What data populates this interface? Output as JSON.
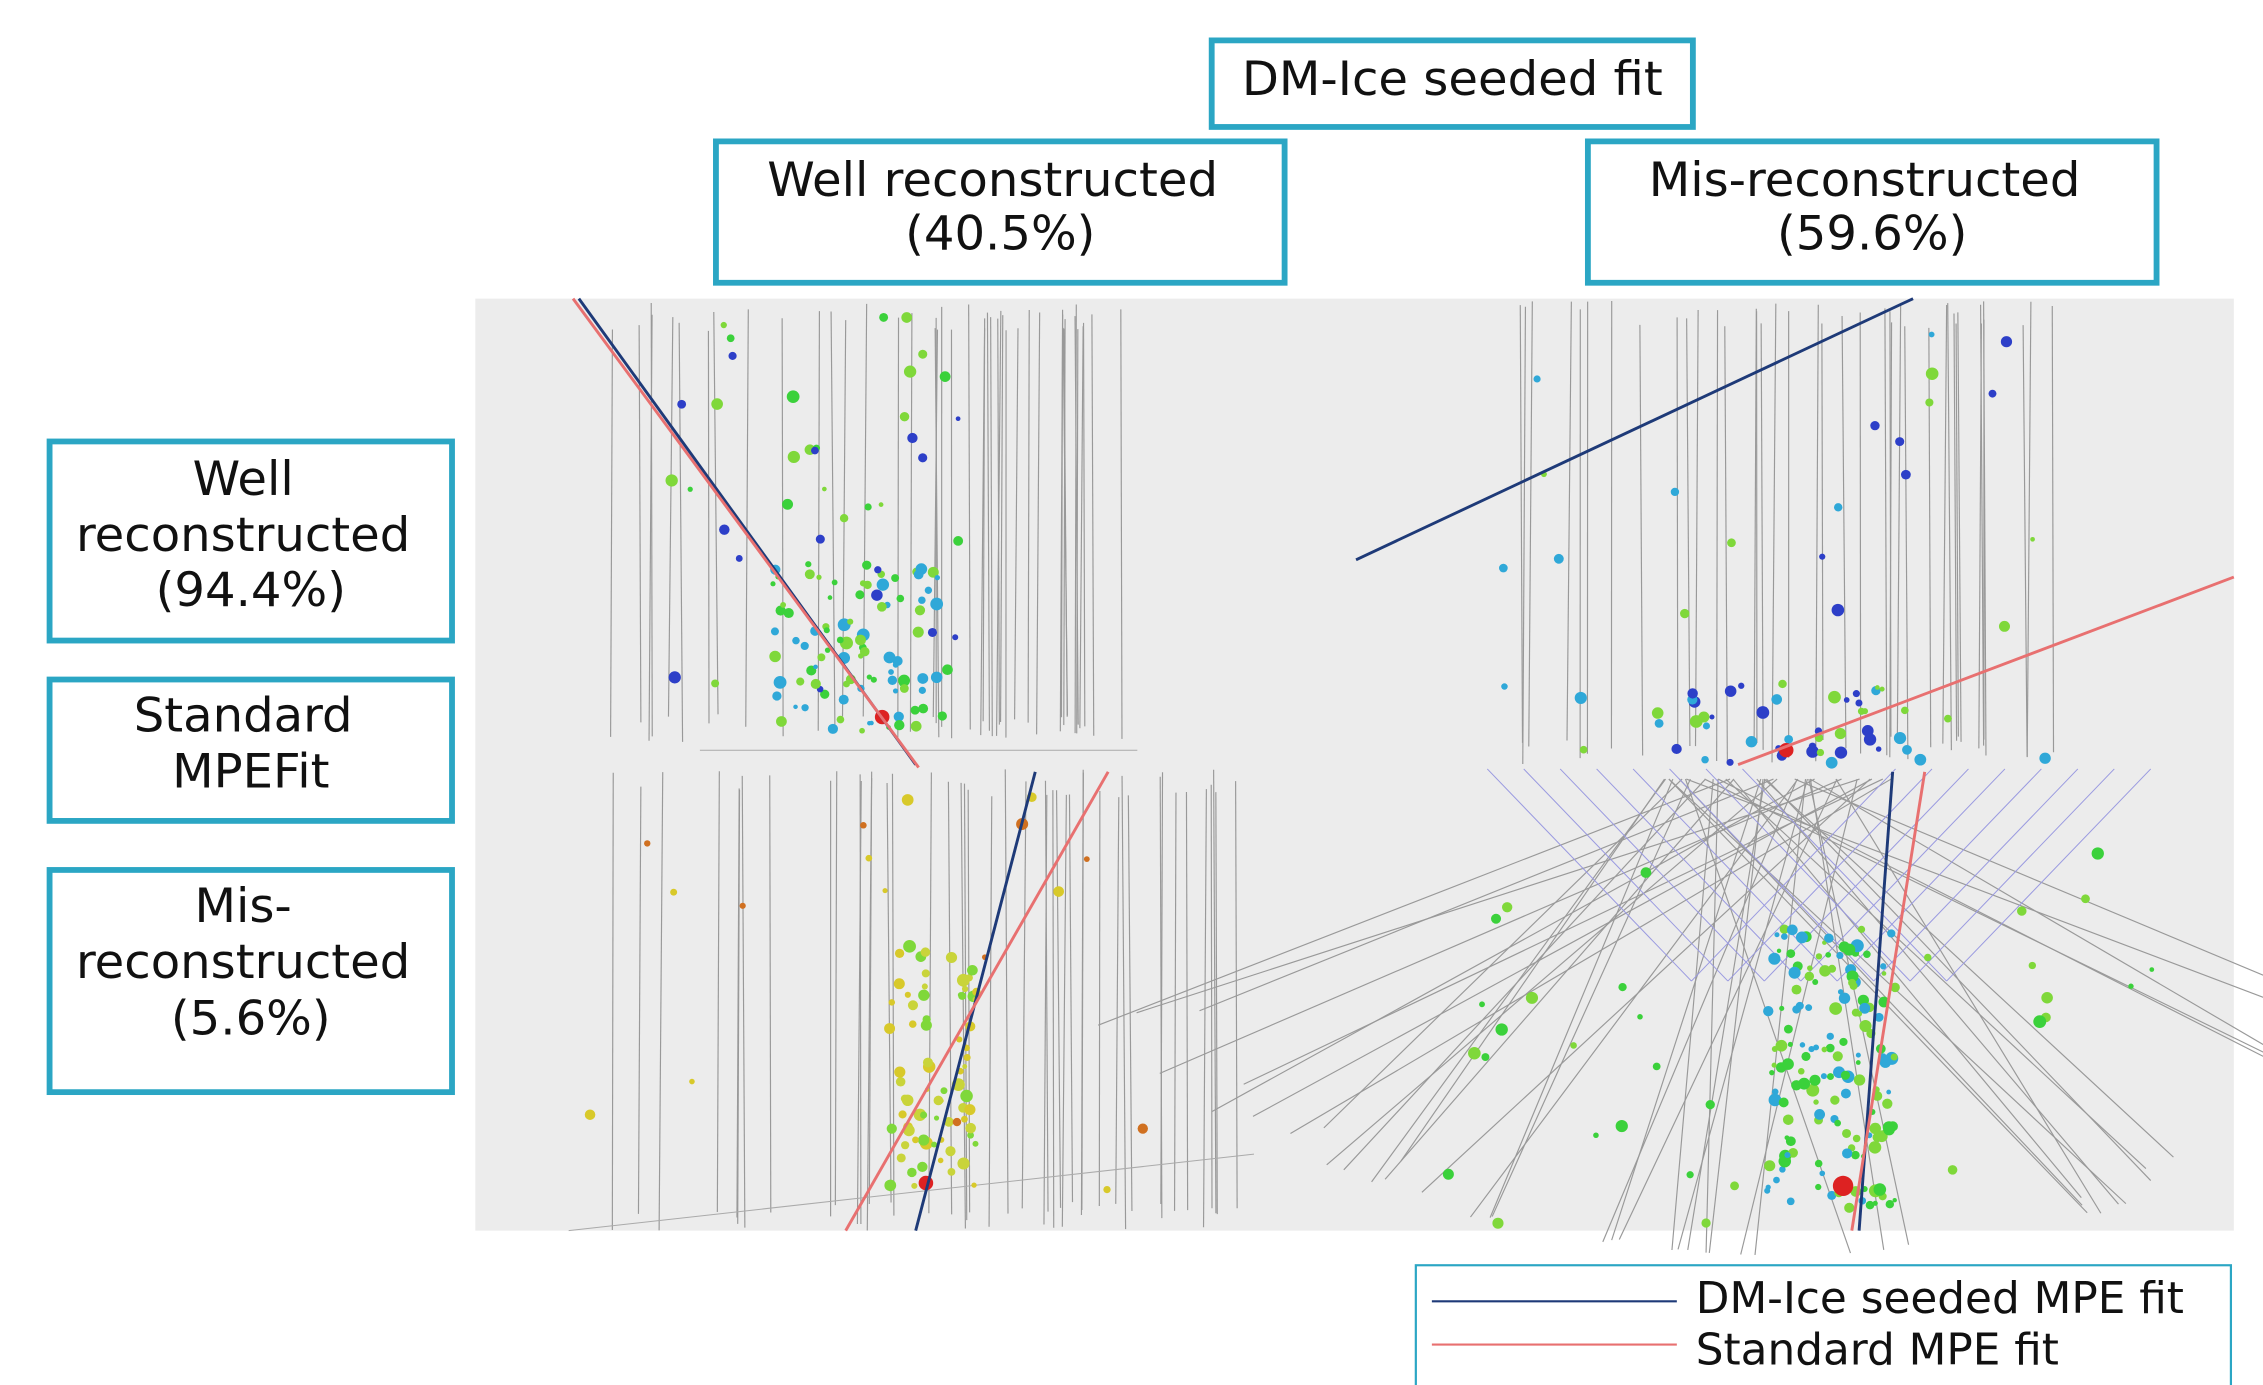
{
  "header": {
    "title": "DM-Ice seeded fit"
  },
  "columns": [
    [
      "Well reconstructed",
      "(40.5%)"
    ],
    [
      "Mis-reconstructed",
      "(59.6%)"
    ]
  ],
  "rows": [
    [
      "Well",
      "reconstructed",
      "(94.4%)"
    ],
    [
      "Standard",
      "MPEFit"
    ],
    [
      "Mis-",
      "reconstructed",
      "(5.6%)"
    ]
  ],
  "legend": [
    "DM-Ice seeded MPE fit",
    "Standard MPE fit"
  ]
}
